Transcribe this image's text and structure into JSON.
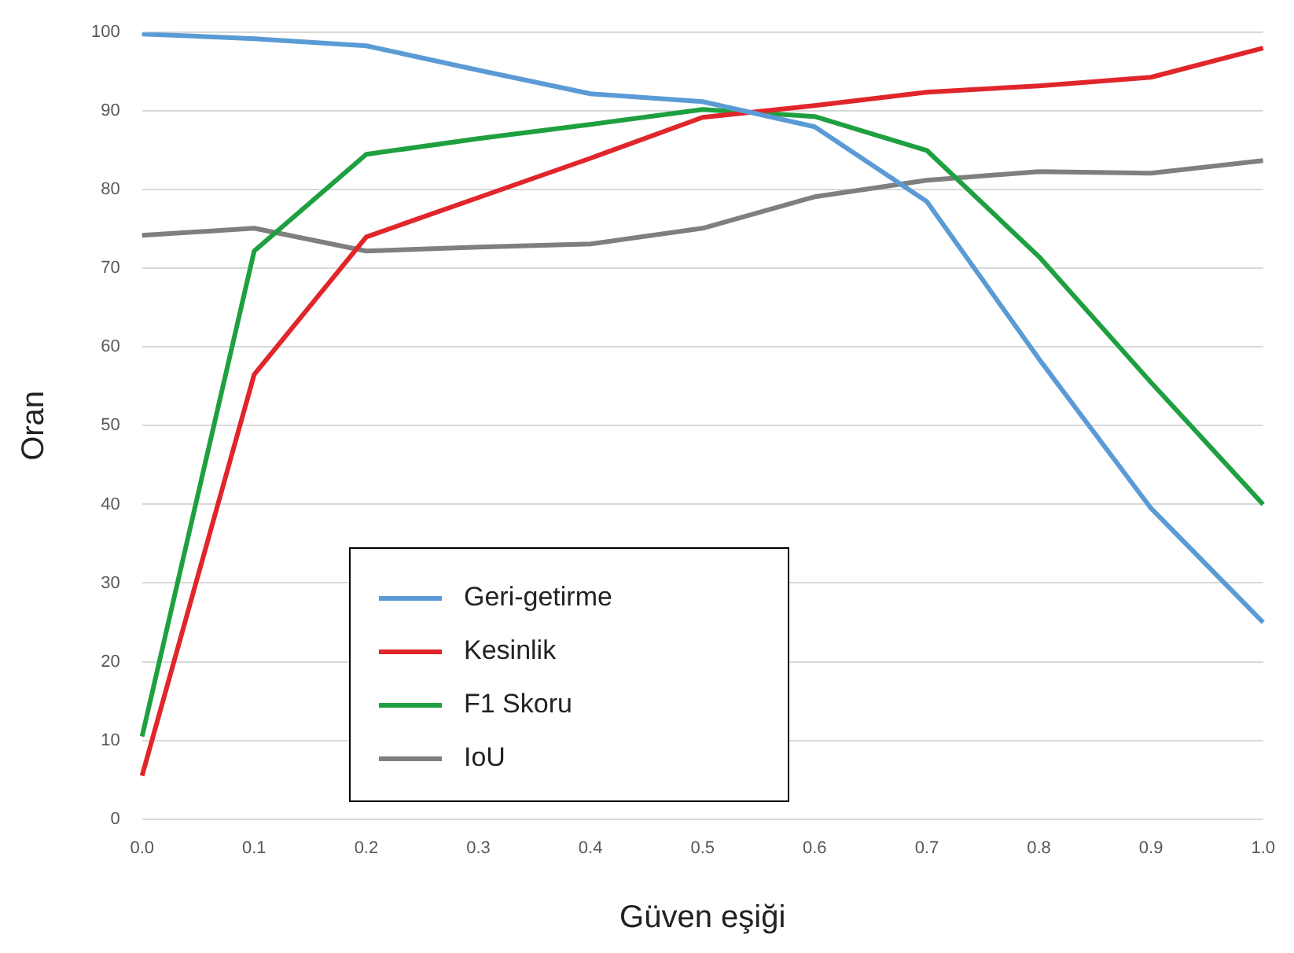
{
  "chart_data": {
    "type": "line",
    "xlabel": "Güven eşiği",
    "ylabel": "Oran",
    "categories": [
      "0.0",
      "0.1",
      "0.2",
      "0.3",
      "0.4",
      "0.5",
      "0.6",
      "0.7",
      "0.8",
      "0.9",
      "1.0"
    ],
    "series": [
      {
        "name": "Geri-getirme",
        "color": "#5b9bd5",
        "values": [
          99.8,
          99.2,
          98.3,
          95.2,
          92.2,
          91.2,
          88,
          78.5,
          58.5,
          39.5,
          25
        ]
      },
      {
        "name": "Kesinlik",
        "color": "#e0262b",
        "values": [
          5.5,
          56.5,
          74,
          79,
          84,
          89.2,
          90.7,
          92.4,
          93.2,
          94.3,
          98
        ]
      },
      {
        "name": "F1 Skoru",
        "color": "#1fa040",
        "values": [
          10.5,
          72.2,
          84.5,
          86.5,
          88.3,
          90.2,
          89.3,
          85,
          71.5,
          55.5,
          40
        ]
      },
      {
        "name": "IoU",
        "color": "#7f7f7f",
        "values": [
          74.2,
          75.1,
          72.2,
          72.7,
          73.1,
          75.1,
          79.1,
          81.2,
          82.3,
          82.1,
          83.7
        ]
      }
    ],
    "ylim": [
      0,
      100
    ],
    "yticks": [
      0,
      10,
      20,
      30,
      40,
      50,
      60,
      70,
      80,
      90,
      100
    ],
    "grid": "y",
    "legend": "bottom left",
    "marker": "none",
    "line_style": "solid"
  }
}
